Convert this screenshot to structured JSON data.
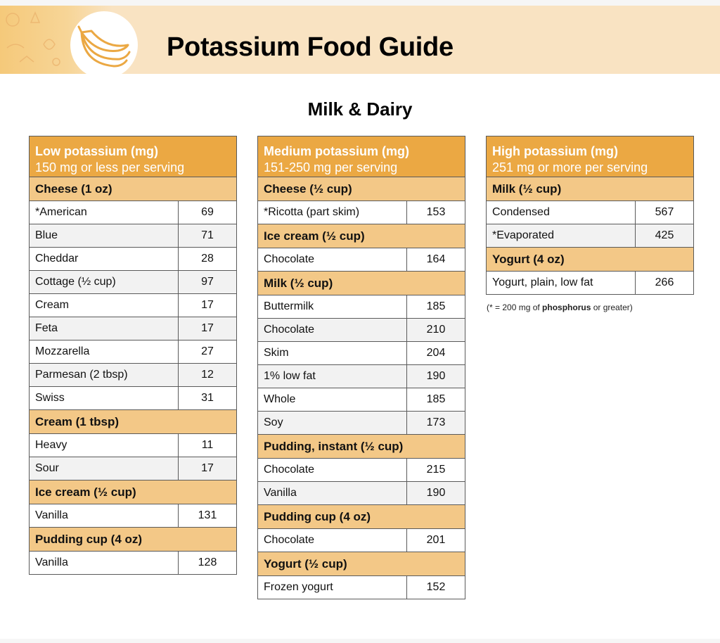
{
  "header": {
    "title": "Potassium Food Guide",
    "logo_icon": "banana-icon"
  },
  "section_title": "Milk & Dairy",
  "columns": [
    {
      "heading": "Low potassium (mg)",
      "subheading": "150 mg or less per serving",
      "groups": [
        {
          "category": "Cheese (1 oz)",
          "items": [
            {
              "name": "*American",
              "value": "69"
            },
            {
              "name": "Blue",
              "value": "71"
            },
            {
              "name": "Cheddar",
              "value": "28"
            },
            {
              "name": "Cottage (½ cup)",
              "value": "97"
            },
            {
              "name": "Cream",
              "value": "17"
            },
            {
              "name": "Feta",
              "value": "17"
            },
            {
              "name": "Mozzarella",
              "value": "27"
            },
            {
              "name": "Parmesan (2 tbsp)",
              "value": "12"
            },
            {
              "name": "Swiss",
              "value": "31"
            }
          ]
        },
        {
          "category": "Cream (1 tbsp)",
          "items": [
            {
              "name": "Heavy",
              "value": "11"
            },
            {
              "name": "Sour",
              "value": "17"
            }
          ]
        },
        {
          "category": "Ice cream (½ cup)",
          "items": [
            {
              "name": "Vanilla",
              "value": "131"
            }
          ]
        },
        {
          "category": "Pudding cup (4 oz)",
          "items": [
            {
              "name": "Vanilla",
              "value": "128"
            }
          ]
        }
      ]
    },
    {
      "heading": "Medium potassium (mg)",
      "subheading": "151-250 mg per serving",
      "groups": [
        {
          "category": "Cheese (½ cup)",
          "items": [
            {
              "name": "*Ricotta (part skim)",
              "value": "153"
            }
          ]
        },
        {
          "category": "Ice cream (½ cup)",
          "items": [
            {
              "name": "Chocolate",
              "value": "164"
            }
          ]
        },
        {
          "category": "Milk (½ cup)",
          "items": [
            {
              "name": "Buttermilk",
              "value": "185"
            },
            {
              "name": "Chocolate",
              "value": "210"
            },
            {
              "name": "Skim",
              "value": "204"
            },
            {
              "name": "1% low fat",
              "value": "190"
            },
            {
              "name": "Whole",
              "value": "185"
            },
            {
              "name": "Soy",
              "value": "173"
            }
          ]
        },
        {
          "category": "Pudding, instant (½ cup)",
          "items": [
            {
              "name": "Chocolate",
              "value": "215"
            },
            {
              "name": "Vanilla",
              "value": "190"
            }
          ]
        },
        {
          "category": "Pudding cup (4 oz)",
          "items": [
            {
              "name": "Chocolate",
              "value": "201"
            }
          ]
        },
        {
          "category": "Yogurt (½ cup)",
          "items": [
            {
              "name": "Frozen yogurt",
              "value": "152"
            }
          ]
        }
      ]
    },
    {
      "heading": "High potassium (mg)",
      "subheading": "251 mg or more per serving",
      "groups": [
        {
          "category": "Milk (½ cup)",
          "items": [
            {
              "name": "Condensed",
              "value": "567"
            },
            {
              "name": "*Evaporated",
              "value": "425"
            }
          ]
        },
        {
          "category": "Yogurt (4 oz)",
          "items": [
            {
              "name": "Yogurt, plain, low fat",
              "value": "266"
            }
          ]
        }
      ]
    }
  ],
  "footnote": {
    "prefix": "(* = 200 mg of ",
    "bold": "phosphorus",
    "suffix": " or greater)"
  },
  "colors": {
    "header_bg": "#eba843",
    "category_bg": "#f3c887",
    "banner_bg": "#f9e3c2"
  }
}
